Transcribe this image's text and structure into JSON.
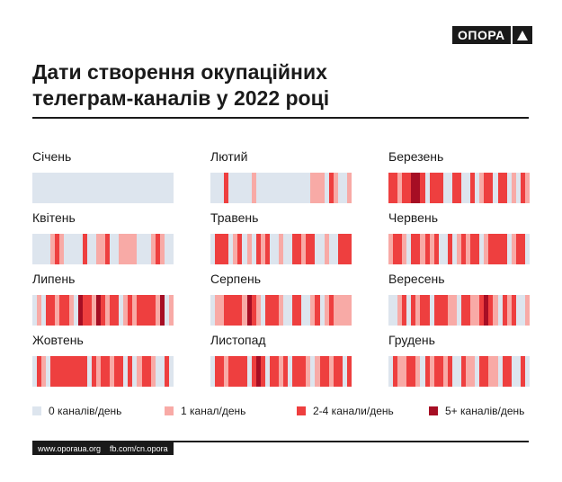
{
  "brand": {
    "logo_text": "ОПОРА"
  },
  "title": {
    "line1": "Дати створення окупаційних",
    "line2": "телеграм-каналів у 2022 році"
  },
  "colors": {
    "0": "#dde5ee",
    "1": "#f8aaa6",
    "2": "#ee3f3f",
    "3": "#a60e24"
  },
  "chart_data": {
    "type": "heatmap",
    "title": "Дати створення окупаційних телеграм-каналів у 2022 році",
    "categories": [
      "0 каналів/день",
      "1 канал/день",
      "2-4 канали/день",
      "5+ каналів/день"
    ],
    "months": [
      {
        "name": "Січень",
        "days": [
          0,
          0,
          0,
          0,
          0,
          0,
          0,
          0,
          0,
          0,
          0,
          0,
          0,
          0,
          0,
          0,
          0,
          0,
          0,
          0,
          0,
          0,
          0,
          0,
          0,
          0,
          0,
          0,
          0,
          0,
          0
        ]
      },
      {
        "name": "Лютий",
        "days": [
          0,
          0,
          0,
          2,
          0,
          0,
          0,
          0,
          0,
          1,
          0,
          0,
          0,
          0,
          0,
          0,
          0,
          0,
          0,
          0,
          0,
          0,
          1,
          1,
          1,
          0,
          2,
          1,
          0,
          0,
          1
        ]
      },
      {
        "name": "Березень",
        "days": [
          2,
          2,
          1,
          2,
          2,
          3,
          3,
          2,
          0,
          2,
          2,
          2,
          0,
          0,
          2,
          2,
          0,
          0,
          2,
          0,
          1,
          2,
          2,
          0,
          2,
          2,
          0,
          1,
          0,
          2,
          1
        ]
      },
      {
        "name": "Квітень",
        "days": [
          0,
          0,
          0,
          0,
          1,
          2,
          1,
          0,
          0,
          0,
          0,
          2,
          0,
          0,
          1,
          1,
          2,
          0,
          0,
          1,
          1,
          1,
          1,
          0,
          0,
          0,
          1,
          2,
          1,
          0,
          0
        ]
      },
      {
        "name": "Травень",
        "days": [
          0,
          2,
          2,
          2,
          0,
          1,
          2,
          0,
          1,
          0,
          2,
          1,
          2,
          0,
          0,
          1,
          0,
          0,
          2,
          2,
          1,
          2,
          2,
          0,
          0,
          1,
          0,
          0,
          2,
          2,
          2
        ]
      },
      {
        "name": "Червень",
        "days": [
          1,
          2,
          2,
          1,
          0,
          2,
          2,
          1,
          2,
          1,
          2,
          0,
          0,
          2,
          0,
          1,
          2,
          1,
          2,
          2,
          0,
          1,
          2,
          2,
          2,
          2,
          0,
          1,
          2,
          2,
          0
        ]
      },
      {
        "name": "Липень",
        "days": [
          0,
          1,
          0,
          2,
          2,
          1,
          2,
          2,
          1,
          0,
          3,
          2,
          2,
          1,
          3,
          2,
          1,
          2,
          2,
          0,
          1,
          2,
          1,
          2,
          2,
          2,
          2,
          1,
          3,
          0,
          1
        ]
      },
      {
        "name": "Серпень",
        "days": [
          0,
          1,
          1,
          2,
          2,
          2,
          2,
          1,
          3,
          2,
          1,
          0,
          2,
          2,
          2,
          1,
          0,
          0,
          2,
          2,
          0,
          0,
          1,
          2,
          0,
          1,
          2,
          1,
          1,
          1,
          1
        ]
      },
      {
        "name": "Вересень",
        "days": [
          0,
          0,
          1,
          2,
          0,
          2,
          1,
          2,
          2,
          0,
          2,
          2,
          2,
          1,
          1,
          0,
          2,
          2,
          1,
          1,
          2,
          3,
          2,
          1,
          0,
          2,
          1,
          2,
          0,
          0,
          1
        ]
      },
      {
        "name": "Жовтень",
        "days": [
          0,
          2,
          1,
          0,
          2,
          2,
          2,
          2,
          2,
          2,
          2,
          2,
          0,
          2,
          1,
          2,
          2,
          1,
          2,
          2,
          0,
          2,
          0,
          1,
          2,
          2,
          1,
          0,
          0,
          2,
          0
        ]
      },
      {
        "name": "Листопад",
        "days": [
          0,
          2,
          2,
          1,
          2,
          2,
          2,
          2,
          0,
          2,
          3,
          2,
          0,
          2,
          2,
          1,
          2,
          0,
          2,
          2,
          2,
          1,
          0,
          1,
          2,
          2,
          1,
          2,
          2,
          0,
          2
        ]
      },
      {
        "name": "Грудень",
        "days": [
          0,
          2,
          1,
          1,
          2,
          2,
          1,
          0,
          2,
          1,
          2,
          2,
          1,
          2,
          0,
          0,
          2,
          1,
          1,
          0,
          2,
          2,
          1,
          1,
          0,
          2,
          2,
          0,
          0,
          2,
          0
        ]
      }
    ]
  },
  "legend": [
    {
      "label": "0 каналів/день",
      "level": 0
    },
    {
      "label": "1 канал/день",
      "level": 1
    },
    {
      "label": "2-4 канали/день",
      "level": 2
    },
    {
      "label": "5+ каналів/день",
      "level": 3
    }
  ],
  "footer": {
    "site": "www.oporaua.org",
    "social": "fb.com/cn.opora"
  }
}
